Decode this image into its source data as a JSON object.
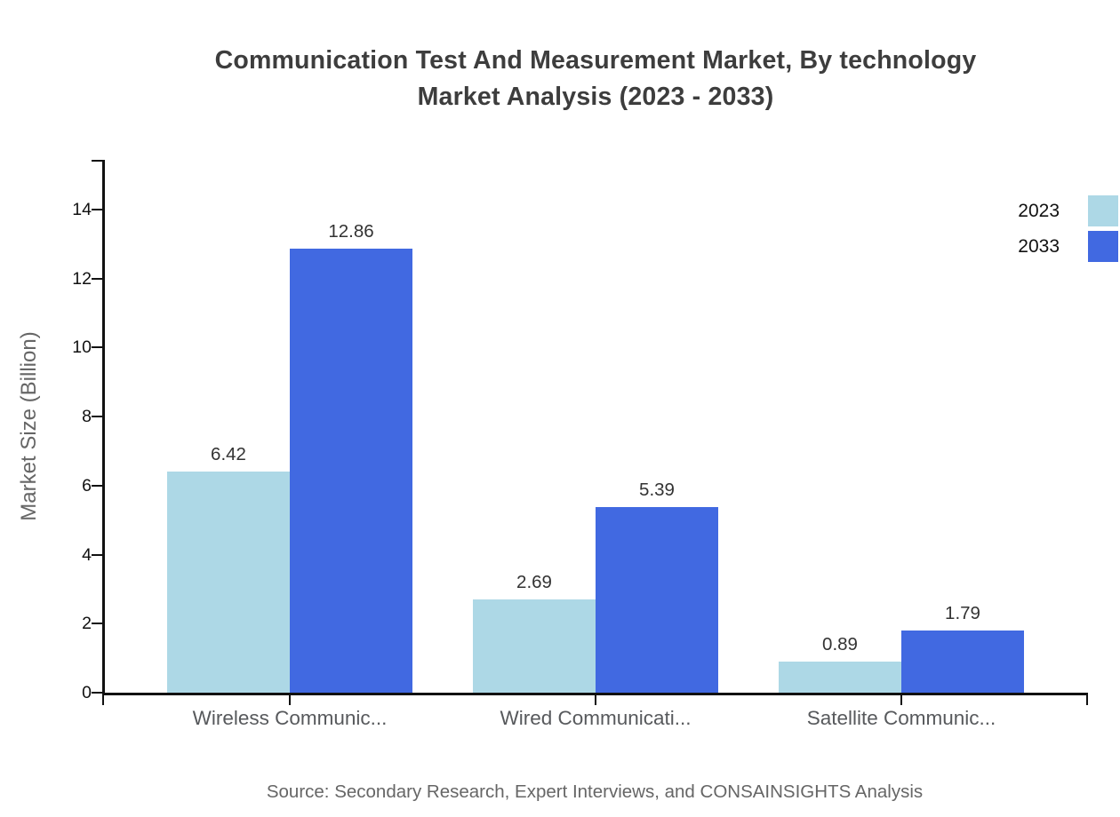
{
  "title": {
    "line1": "Communication Test And Measurement Market, By technology",
    "line2": "Market Analysis (2023 - 2033)"
  },
  "source": "Source: Secondary Research, Expert Interviews, and CONSAINSIGHTS Analysis",
  "colors": {
    "series_2023": "#ADD8E6",
    "series_2033": "#4169E1",
    "axis": "#111111",
    "title_text": "#3d3d3d",
    "muted_text": "#57595c"
  },
  "chart_data": {
    "type": "bar",
    "title": "Communication Test And Measurement Market, By technology Market Analysis (2023 - 2033)",
    "categories": [
      "Wireless Communic...",
      "Wired Communicati...",
      "Satellite Communic..."
    ],
    "series": [
      {
        "name": "2023",
        "color": "#ADD8E6",
        "values": [
          6.42,
          2.69,
          0.89
        ]
      },
      {
        "name": "2033",
        "color": "#4169E1",
        "values": [
          12.86,
          5.39,
          1.79
        ]
      }
    ],
    "xlabel": "",
    "ylabel": "Market Size (Billion)",
    "yticks": [
      0,
      2,
      4,
      6,
      8,
      10,
      12,
      14
    ],
    "ylim": [
      0,
      15.45
    ],
    "grid": false,
    "legend_position": "top-right",
    "value_labels": true
  }
}
